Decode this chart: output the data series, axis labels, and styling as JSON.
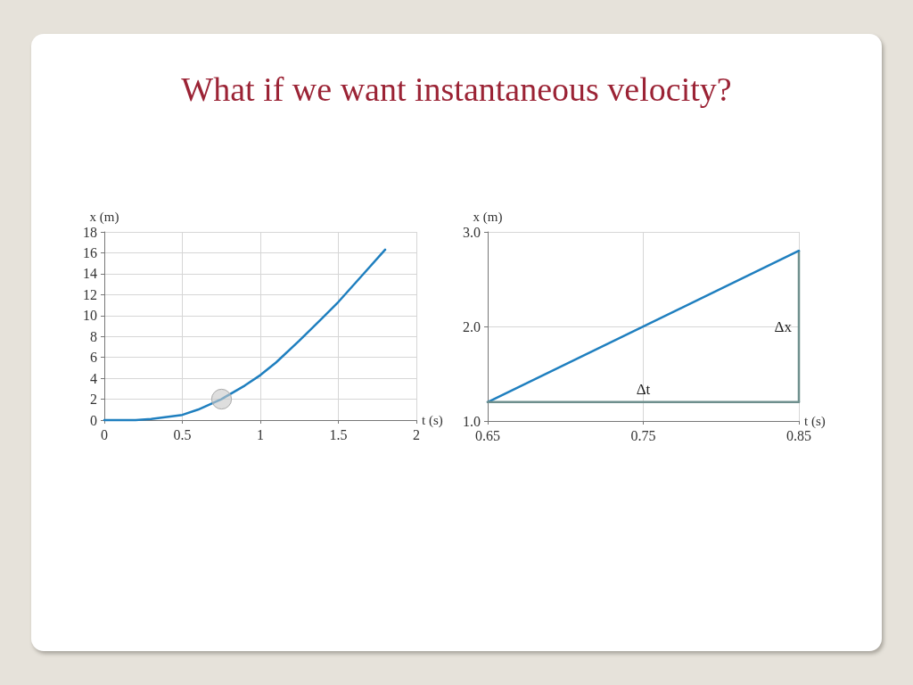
{
  "chart_data": [
    {
      "type": "line",
      "title": "What if we want instantaneous velocity?",
      "xlabel": "t (s)",
      "ylabel": "x (m)",
      "x": [
        0,
        0.1,
        0.2,
        0.3,
        0.4,
        0.5,
        0.6,
        0.75,
        0.9,
        1.0,
        1.1,
        1.25,
        1.4,
        1.5,
        1.65,
        1.8
      ],
      "series": [
        {
          "color": "#1f7fbf",
          "values": [
            0,
            0,
            0,
            0.1,
            0.3,
            0.5,
            1.0,
            2.0,
            3.3,
            4.3,
            5.5,
            7.6,
            9.8,
            11.3,
            13.8,
            16.3
          ]
        }
      ],
      "xlim": [
        0,
        2
      ],
      "xticks": [
        0,
        0.5,
        1,
        1.5,
        2
      ],
      "ylim": [
        0,
        18
      ],
      "yticks": [
        0,
        2,
        4,
        6,
        8,
        10,
        12,
        14,
        16,
        18
      ],
      "grid": true,
      "marker": "none",
      "line_style": "solid"
    },
    {
      "type": "line",
      "xlabel": "t (s)",
      "ylabel": "x (m)",
      "series": [
        {
          "color": "#1f7fbf",
          "values": [
            1.2,
            2.8
          ]
        },
        {
          "color": "#6e8f8d",
          "values": [
            1.2,
            1.2
          ],
          "errors": [
            null,
            [
              1.2,
              2.8
            ]
          ]
        }
      ],
      "x": [
        0.65,
        0.85
      ],
      "xlim": [
        0.65,
        0.85
      ],
      "xticks": [
        0.65,
        0.75,
        0.85
      ],
      "ylim": [
        1.0,
        3.0
      ],
      "yticks": [
        {
          "value": 1,
          "label": "1.0"
        },
        {
          "value": 2,
          "label": "2.0"
        },
        {
          "value": 3,
          "label": "3.0"
        }
      ],
      "annotations": [
        "Δt",
        "Δx"
      ],
      "grid": true,
      "marker": "none",
      "line_style": "solid"
    }
  ]
}
